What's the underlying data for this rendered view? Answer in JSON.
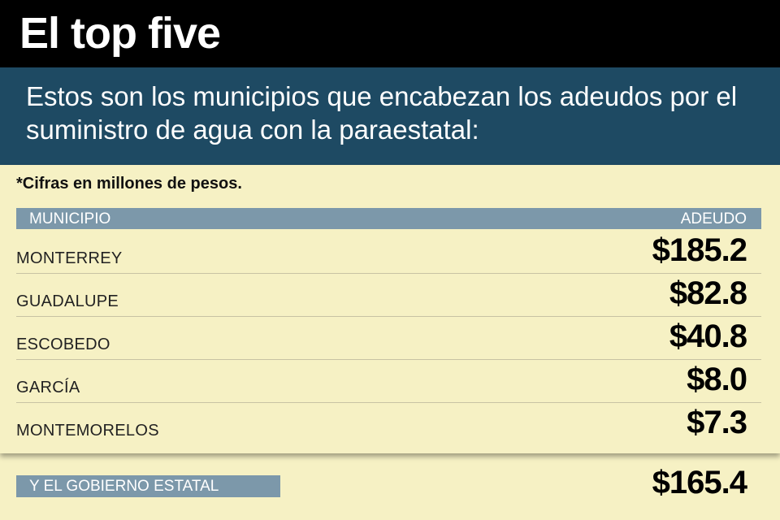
{
  "title": "El top five",
  "subtitle": "Estos son los municipios que encabezan los adeudos por el suministro de agua con la paraestatal:",
  "note": "*Cifras en millones de pesos.",
  "colors": {
    "background": "#f6f1c4",
    "title_bar": "#000000",
    "subtitle_bar": "#1e4a63",
    "header_bar": "#7c98aa"
  },
  "chart_data": {
    "type": "table",
    "columns": [
      "MUNICIPIO",
      "ADEUDO"
    ],
    "rows": [
      {
        "municipio": "MONTERREY",
        "adeudo": 185.2,
        "display": "$185.2"
      },
      {
        "municipio": "GUADALUPE",
        "adeudo": 82.8,
        "display": "$82.8"
      },
      {
        "municipio": "ESCOBEDO",
        "adeudo": 40.8,
        "display": "$40.8"
      },
      {
        "municipio": "GARCÍA",
        "adeudo": 8.0,
        "display": "$8.0"
      },
      {
        "municipio": "MONTEMORELOS",
        "adeudo": 7.3,
        "display": "$7.3"
      }
    ],
    "total": {
      "label": "Y EL GOBIERNO ESTATAL",
      "adeudo": 165.4,
      "display": "$165.4"
    }
  }
}
